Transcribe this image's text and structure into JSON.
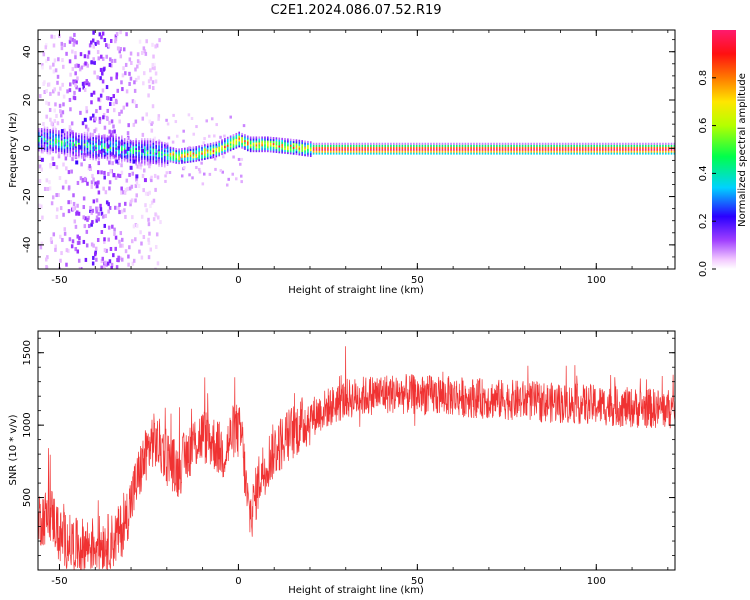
{
  "title": "C2E1.2024.086.07.52.R19",
  "chart_data": [
    {
      "type": "heatmap",
      "xlabel": "Height of straight line (km)",
      "ylabel": "Frequency (Hz)",
      "xlim": [
        -56,
        122
      ],
      "ylim": [
        -50,
        49
      ],
      "xticks": [
        -50,
        0,
        50,
        100
      ],
      "yticks": [
        -40,
        -20,
        0,
        20,
        40
      ],
      "colorbar": {
        "label": "Normalized spectral amplitude",
        "range": [
          0,
          1
        ],
        "ticks": [
          0.0,
          0.2,
          0.4,
          0.6,
          0.8
        ],
        "colormap": "rainbow (white → magenta → purple → blue → cyan → green → yellow → orange → red → pink)"
      },
      "ridge": {
        "description": "High-amplitude narrow band tracking ~0 Hz (Doppler shift) versus height",
        "points": [
          [
            -55,
            4
          ],
          [
            -50,
            3
          ],
          [
            -45,
            2
          ],
          [
            -40,
            1
          ],
          [
            -35,
            1
          ],
          [
            -30,
            -1
          ],
          [
            -25,
            -1
          ],
          [
            -20,
            -2
          ],
          [
            -17,
            -3
          ],
          [
            -12,
            -2
          ],
          [
            -6,
            0
          ],
          [
            -3,
            2
          ],
          [
            0,
            4
          ],
          [
            3,
            2
          ],
          [
            8,
            2
          ],
          [
            15,
            1
          ],
          [
            20,
            0
          ],
          [
            40,
            0
          ],
          [
            60,
            0
          ],
          [
            80,
            0
          ],
          [
            100,
            0
          ],
          [
            122,
            0
          ]
        ],
        "band_amplitude_peak": 1.0
      },
      "noise_region_km": [
        -56,
        -30
      ]
    },
    {
      "type": "line",
      "xlabel": "Height of straight line (km)",
      "ylabel": "SNR (10 * v/v)",
      "xlim": [
        -56,
        122
      ],
      "ylim": [
        0,
        1650
      ],
      "xticks": [
        -50,
        0,
        50,
        100
      ],
      "yticks": [
        500,
        1000,
        1500
      ],
      "series": [
        {
          "color": "#f03232",
          "envelope": [
            [
              -56,
              350
            ],
            [
              -52,
              380
            ],
            [
              -50,
              230
            ],
            [
              -45,
              160
            ],
            [
              -40,
              180
            ],
            [
              -35,
              200
            ],
            [
              -32,
              300
            ],
            [
              -30,
              480
            ],
            [
              -27,
              720
            ],
            [
              -24,
              900
            ],
            [
              -20,
              800
            ],
            [
              -17,
              680
            ],
            [
              -13,
              860
            ],
            [
              -10,
              930
            ],
            [
              -7,
              880
            ],
            [
              -4,
              800
            ],
            [
              -1,
              980
            ],
            [
              1,
              920
            ],
            [
              2,
              600
            ],
            [
              3,
              380
            ],
            [
              4,
              420
            ],
            [
              6,
              650
            ],
            [
              10,
              830
            ],
            [
              15,
              950
            ],
            [
              20,
              1050
            ],
            [
              25,
              1120
            ],
            [
              30,
              1180
            ],
            [
              40,
              1220
            ],
            [
              50,
              1210
            ],
            [
              60,
              1200
            ],
            [
              70,
              1180
            ],
            [
              80,
              1170
            ],
            [
              90,
              1150
            ],
            [
              100,
              1140
            ],
            [
              110,
              1120
            ],
            [
              122,
              1110
            ]
          ],
          "noise_amplitude": 140
        }
      ]
    }
  ]
}
